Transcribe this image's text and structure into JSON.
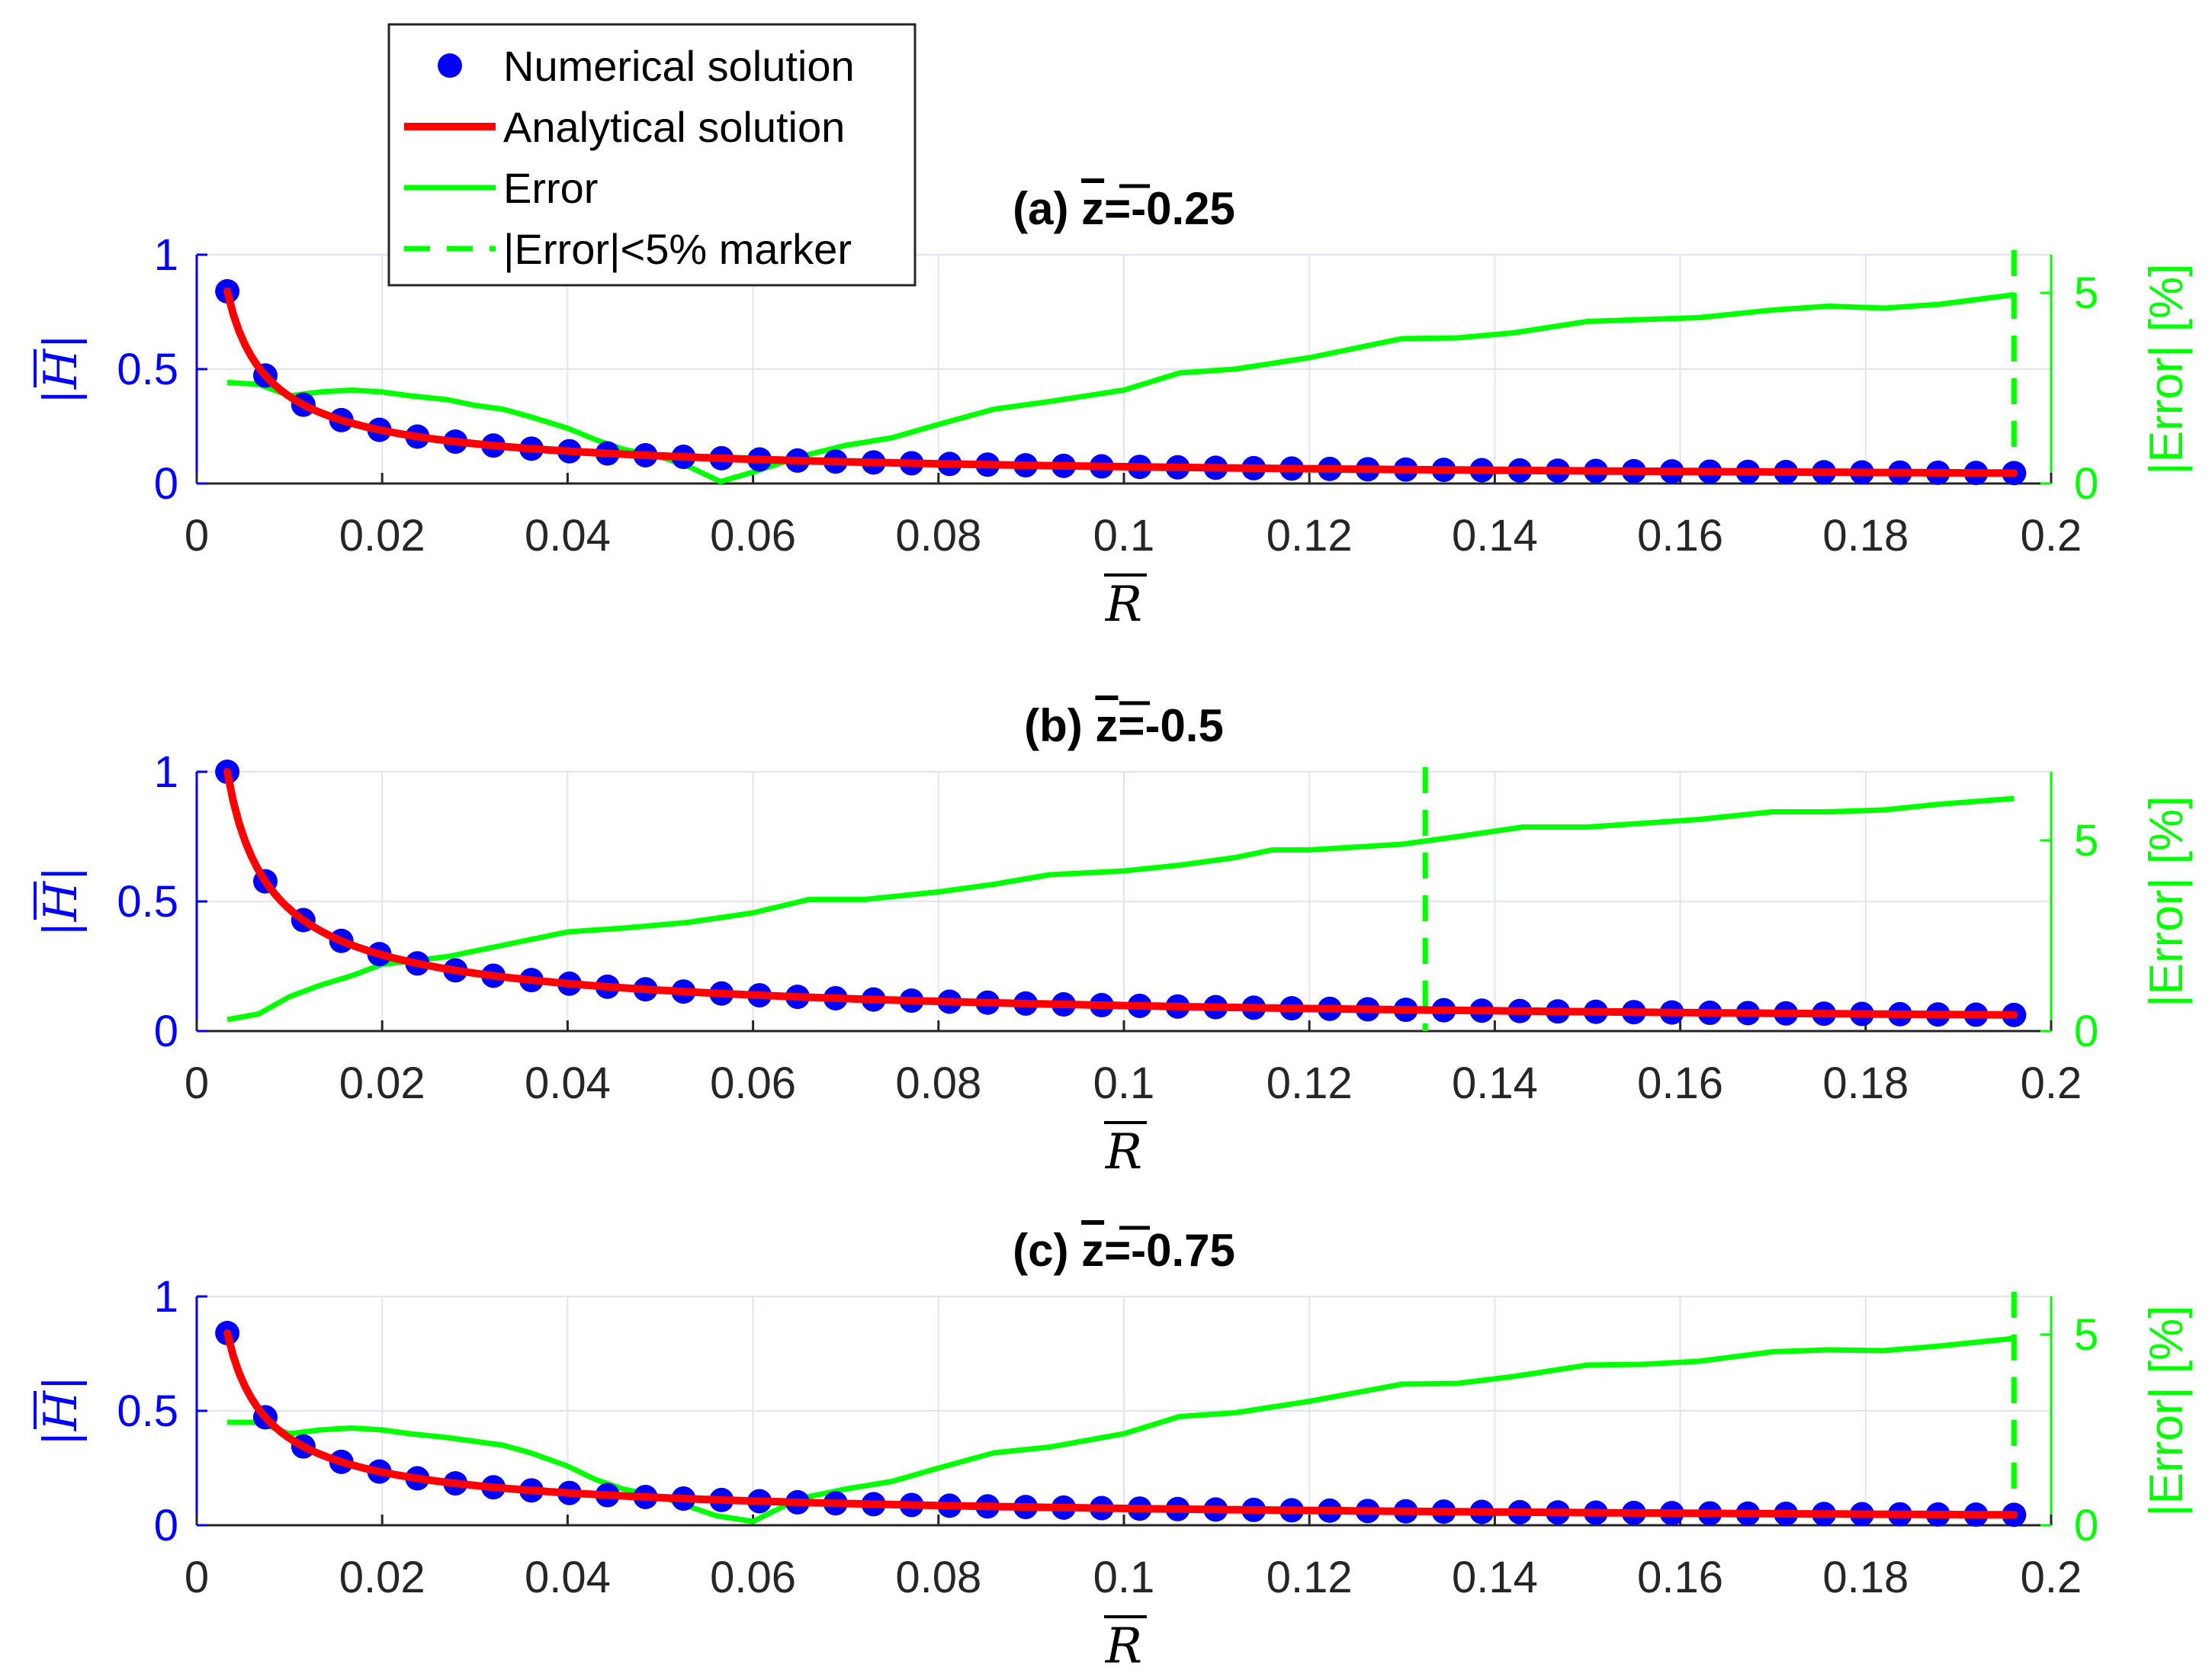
{
  "figure": {
    "legend": {
      "entries": [
        "Numerical solution",
        "Analytical solution",
        "Error",
        "|Error|<5% marker"
      ],
      "placement": "top-left",
      "colors": [
        "#0000ff",
        "#ff0000",
        "#00ff00",
        "#00ff00"
      ]
    },
    "colors": {
      "numerical": "#0000ff",
      "analytical": "#ff0000",
      "error": "#00ff00",
      "grid": "#dfe4f2"
    }
  },
  "chart_data": [
    {
      "type": "line",
      "title": "(a) z̅=-0.25",
      "title_prefix": "(a)",
      "title_var": "z",
      "title_value": "=-0.25",
      "xlabel": "R",
      "ylabel": "|H|",
      "y2label": "|Error| [%]",
      "xlim": [
        0,
        0.2
      ],
      "ylim": [
        0,
        1
      ],
      "y2lim": [
        0,
        6
      ],
      "xticks": [
        0,
        0.02,
        0.04,
        0.06,
        0.08,
        0.1,
        0.12,
        0.14,
        0.16,
        0.18,
        0.2
      ],
      "xtick_labels": [
        "0",
        "0.02",
        "0.04",
        "0.06",
        "0.08",
        "0.1",
        "0.12",
        "0.14",
        "0.16",
        "0.18",
        "0.2"
      ],
      "yticks": [
        0,
        0.5,
        1
      ],
      "ytick_labels": [
        "0",
        "0.5",
        "1"
      ],
      "y2ticks": [
        0,
        5
      ],
      "y2tick_labels": [
        "0",
        "5"
      ],
      "h0": 0.84,
      "h_decay": 0.714,
      "error_x": [
        0.0033,
        0.0067,
        0.01,
        0.0133,
        0.0167,
        0.02,
        0.023,
        0.027,
        0.03,
        0.033,
        0.036,
        0.04,
        0.043,
        0.046,
        0.05,
        0.053,
        0.0565,
        0.06,
        0.065,
        0.07,
        0.075,
        0.08,
        0.086,
        0.092,
        0.1,
        0.106,
        0.112,
        0.12,
        0.13,
        0.136,
        0.142,
        0.15,
        0.156,
        0.162,
        0.17,
        0.176,
        0.182,
        0.188,
        0.196
      ],
      "error_y": [
        2.65,
        2.6,
        2.3,
        2.4,
        2.45,
        2.4,
        2.3,
        2.2,
        2.05,
        1.95,
        1.75,
        1.45,
        1.15,
        0.9,
        0.7,
        0.45,
        0.05,
        0.3,
        0.7,
        1.0,
        1.2,
        1.55,
        1.95,
        2.15,
        2.45,
        2.9,
        3.0,
        3.3,
        3.8,
        3.82,
        3.95,
        4.25,
        4.3,
        4.35,
        4.55,
        4.65,
        4.6,
        4.7,
        4.95
      ],
      "marker_x": 0.196,
      "numerical_points": 48
    },
    {
      "type": "line",
      "title": "(b) z̅=-0.5",
      "title_prefix": "(b)",
      "title_var": "z",
      "title_value": "=-0.5",
      "xlabel": "R",
      "ylabel": "|H|",
      "y2label": "|Error| [%]",
      "xlim": [
        0,
        0.2
      ],
      "ylim": [
        0,
        1
      ],
      "y2lim": [
        0,
        6.8
      ],
      "xticks": [
        0,
        0.02,
        0.04,
        0.06,
        0.08,
        0.1,
        0.12,
        0.14,
        0.16,
        0.18,
        0.2
      ],
      "xtick_labels": [
        "0",
        "0.02",
        "0.04",
        "0.06",
        "0.08",
        "0.1",
        "0.12",
        "0.14",
        "0.16",
        "0.18",
        "0.2"
      ],
      "yticks": [
        0,
        0.5,
        1
      ],
      "ytick_labels": [
        "0",
        "0.5",
        "1"
      ],
      "y2ticks": [
        0,
        5
      ],
      "y2tick_labels": [
        "0",
        "5"
      ],
      "h0": 1.0,
      "h_decay": 0.68,
      "error_x": [
        0.0033,
        0.0067,
        0.01,
        0.0133,
        0.0167,
        0.02,
        0.027,
        0.033,
        0.04,
        0.046,
        0.053,
        0.06,
        0.066,
        0.072,
        0.08,
        0.086,
        0.092,
        0.1,
        0.106,
        0.112,
        0.116,
        0.12,
        0.13,
        0.136,
        0.143,
        0.15,
        0.156,
        0.162,
        0.17,
        0.176,
        0.182,
        0.188,
        0.196
      ],
      "error_y": [
        0.3,
        0.45,
        0.9,
        1.2,
        1.45,
        1.75,
        1.95,
        2.25,
        2.6,
        2.7,
        2.85,
        3.1,
        3.45,
        3.45,
        3.65,
        3.85,
        4.1,
        4.2,
        4.35,
        4.55,
        4.75,
        4.75,
        4.9,
        5.1,
        5.35,
        5.35,
        5.45,
        5.55,
        5.75,
        5.75,
        5.8,
        5.95,
        6.1
      ],
      "marker_x": 0.1325,
      "numerical_points": 48
    },
    {
      "type": "line",
      "title": "(c) z̅=-0.75",
      "title_prefix": "(c)",
      "title_var": "z",
      "title_value": "=-0.75",
      "xlabel": "R",
      "ylabel": "|H|",
      "y2label": "|Error| [%]",
      "xlim": [
        0,
        0.2
      ],
      "ylim": [
        0,
        1
      ],
      "y2lim": [
        0,
        6
      ],
      "xticks": [
        0,
        0.02,
        0.04,
        0.06,
        0.08,
        0.1,
        0.12,
        0.14,
        0.16,
        0.18,
        0.2
      ],
      "xtick_labels": [
        "0",
        "0.02",
        "0.04",
        "0.06",
        "0.08",
        "0.1",
        "0.12",
        "0.14",
        "0.16",
        "0.18",
        "0.2"
      ],
      "yticks": [
        0,
        0.5,
        1
      ],
      "ytick_labels": [
        "0",
        "0.5",
        "1"
      ],
      "y2ticks": [
        0,
        5
      ],
      "y2tick_labels": [
        "0",
        "5"
      ],
      "h0": 0.84,
      "h_decay": 0.714,
      "error_x": [
        0.0033,
        0.0067,
        0.01,
        0.0133,
        0.0167,
        0.02,
        0.023,
        0.027,
        0.03,
        0.033,
        0.036,
        0.04,
        0.043,
        0.046,
        0.05,
        0.053,
        0.056,
        0.06,
        0.065,
        0.07,
        0.075,
        0.08,
        0.086,
        0.092,
        0.1,
        0.106,
        0.112,
        0.12,
        0.13,
        0.136,
        0.142,
        0.15,
        0.156,
        0.162,
        0.17,
        0.176,
        0.182,
        0.188,
        0.196
      ],
      "error_y": [
        2.7,
        2.7,
        2.4,
        2.5,
        2.55,
        2.5,
        2.4,
        2.3,
        2.2,
        2.1,
        1.9,
        1.55,
        1.2,
        0.95,
        0.75,
        0.5,
        0.25,
        0.1,
        0.7,
        0.95,
        1.15,
        1.5,
        1.9,
        2.05,
        2.4,
        2.85,
        2.95,
        3.25,
        3.7,
        3.72,
        3.9,
        4.2,
        4.22,
        4.3,
        4.55,
        4.6,
        4.58,
        4.7,
        4.9
      ],
      "marker_x": 0.196,
      "numerical_points": 48
    }
  ]
}
